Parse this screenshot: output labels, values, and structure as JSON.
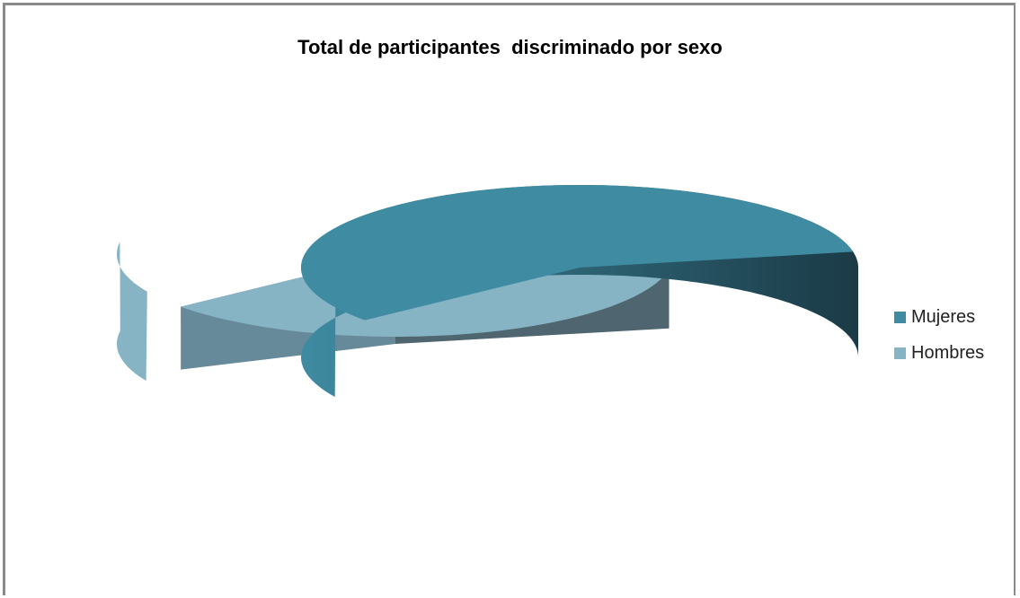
{
  "chart_data": {
    "type": "pie",
    "title": "Total de participantes  discriminado por sexo",
    "categories": [
      "Mujeres",
      "Hombres"
    ],
    "values": [
      58,
      42
    ],
    "colors": {
      "Mujeres": "#3F8BA1",
      "Hombres": "#87B4C5",
      "Mujeres_side_dark": "#1B3A46",
      "Hombres_cut_face": "#4F6670",
      "Hombres_cut_face_light": "#678A9A"
    },
    "style": "3d exploded pie",
    "legend_position": "right"
  }
}
